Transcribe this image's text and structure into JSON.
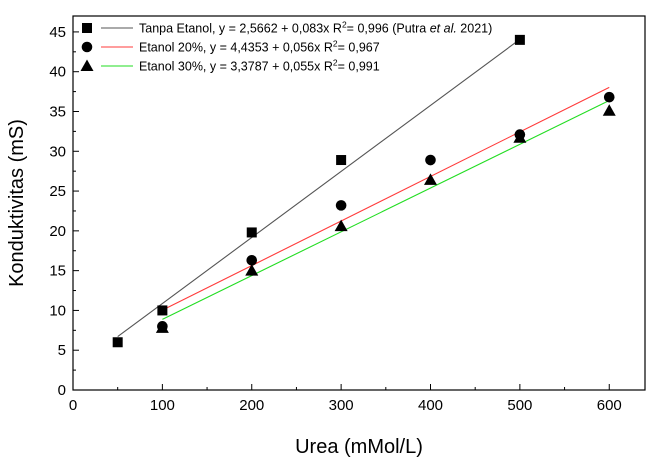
{
  "chart_data": {
    "type": "scatter",
    "xlabel": "Urea (mMol/L)",
    "ylabel": "Konduktivitas (mS)",
    "xlim": [
      0,
      640
    ],
    "ylim": [
      0,
      47
    ],
    "x_ticks": [
      0,
      100,
      200,
      300,
      400,
      500,
      600
    ],
    "y_ticks": [
      0,
      5,
      10,
      15,
      20,
      25,
      30,
      35,
      40,
      45
    ],
    "x_tick_labels": [
      "0",
      "100",
      "200",
      "300",
      "400",
      "500",
      "600"
    ],
    "y_tick_labels": [
      "0",
      "5",
      "10",
      "15",
      "20",
      "25",
      "30",
      "35",
      "40",
      "45"
    ],
    "grid": false,
    "legend_position": "top-left",
    "series": [
      {
        "name": "Tanpa Etanol",
        "marker": "square",
        "color": "#000000",
        "line_color": "#555555",
        "x": [
          50,
          100,
          200,
          300,
          500
        ],
        "y": [
          6.0,
          10.0,
          19.8,
          28.9,
          44.0
        ],
        "fit": {
          "intercept": 2.5662,
          "slope": 0.083,
          "x_range": [
            50,
            500
          ]
        },
        "legend_label": {
          "pre": "Tanpa Etanol, y = 2,5662 + 0,083x R",
          "sup": "2",
          "mid": "= 0,996 (Putra ",
          "italic": "et al.",
          "post": " 2021)"
        }
      },
      {
        "name": "Etanol 20%",
        "marker": "circle",
        "color": "#000000",
        "line_color": "#ff3b3b",
        "x": [
          100,
          200,
          300,
          400,
          500,
          600
        ],
        "y": [
          8.0,
          16.3,
          23.2,
          28.9,
          32.1,
          36.8
        ],
        "fit": {
          "intercept": 4.4353,
          "slope": 0.056,
          "x_range": [
            100,
            600
          ]
        },
        "legend_label": {
          "pre": "Etanol 20%, y = 4,4353 + 0,056x R",
          "sup": "2",
          "mid": "= 0,967",
          "italic": "",
          "post": ""
        }
      },
      {
        "name": "Etanol 30%",
        "marker": "triangle",
        "color": "#000000",
        "line_color": "#22dd22",
        "x": [
          100,
          200,
          300,
          400,
          500,
          600
        ],
        "y": [
          7.8,
          15.0,
          20.6,
          26.4,
          31.7,
          35.1
        ],
        "fit": {
          "intercept": 3.3787,
          "slope": 0.055,
          "x_range": [
            100,
            600
          ]
        },
        "legend_label": {
          "pre": "Etanol 30%, y = 3,3787 + 0,055x R",
          "sup": "2",
          "mid": "= 0,991",
          "italic": "",
          "post": ""
        }
      }
    ]
  }
}
